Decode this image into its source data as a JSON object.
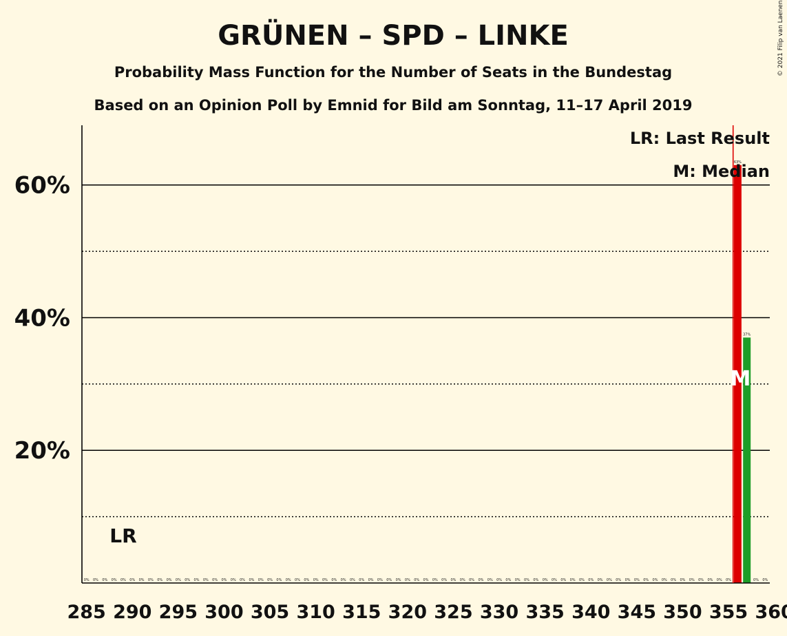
{
  "chart_data": {
    "type": "bar",
    "title": "GRÜNEN – SPD – LINKE",
    "subtitle": "Probability Mass Function for the Number of Seats in the Bundestag",
    "subtitle2": "Based on an Opinion Poll by Emnid for Bild am Sonntag, 11–17 April 2019",
    "copyright": "© 2021 Filip van Laenen",
    "xlabel": "",
    "ylabel": "",
    "xlim": [
      285,
      360
    ],
    "ylim": [
      0,
      69
    ],
    "y_ticks": [
      20,
      40,
      60
    ],
    "y_tick_labels": [
      "20%",
      "40%",
      "60%"
    ],
    "y_dotted": [
      10,
      30,
      50
    ],
    "x_ticks": [
      285,
      290,
      295,
      300,
      305,
      310,
      315,
      320,
      325,
      330,
      335,
      340,
      345,
      350,
      355,
      360
    ],
    "x_tick_labels": [
      "285",
      "290",
      "295",
      "300",
      "305",
      "310",
      "315",
      "320",
      "325",
      "330",
      "335",
      "340",
      "345",
      "350",
      "355",
      "360"
    ],
    "seats_from": 285,
    "seats_to": 359,
    "zero_label": "0%",
    "bars": [
      {
        "seat": 356,
        "value": 63,
        "label": "63%",
        "color": "#DD0000"
      },
      {
        "seat": 357,
        "value": 37,
        "label": "37%",
        "color": "#1E9E28"
      }
    ],
    "last_result": {
      "seat": 289,
      "label": "LR",
      "line_seat": 355.5,
      "line_color": "#DD0000"
    },
    "median": {
      "seat": 356,
      "label": "M"
    },
    "legend": {
      "placement": "top-right",
      "last_result": "LR: Last Result",
      "median": "M: Median"
    },
    "grid": true
  }
}
